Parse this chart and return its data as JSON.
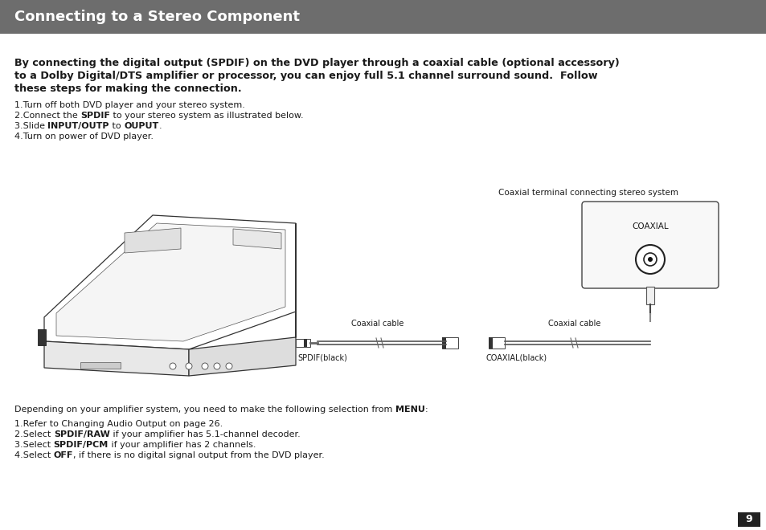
{
  "title": "Connecting to a Stereo Component",
  "title_bg": "#6d6d6d",
  "title_color": "#ffffff",
  "title_fontsize": 13,
  "page_bg": "#ffffff",
  "page_num": "9",
  "intro_line1": "By connecting the digital output (SPDIF) on the DVD player through a coaxial cable (optional accessory)",
  "intro_line2": "to a Dolby Digital/DTS amplifier or processor, you can enjoy full 5.1 channel surround sound.  Follow",
  "intro_line3": "these steps for making the connection.",
  "step1": "1.Turn off both DVD player and your stereo system.",
  "step2_pre": "2.Connect the ",
  "step2_bold": "SPDIF",
  "step2_post": " to your stereo system as illustrated below.",
  "step3_pre": "3.Slide ",
  "step3_bold1": "INPUT/OUTP",
  "step3_mid": " to ",
  "step3_bold2": "OUPUT",
  "step3_post": ".",
  "step4": "4.Turn on power of DVD player.",
  "coaxial_terminal_label": "Coaxial terminal connecting stereo system",
  "coaxial_panel_label": "COAXIAL",
  "coaxial_cable_label": "Coaxial cable",
  "spdif_label": "SPDIF(black)",
  "coaxial_black_label": "COAXIAL(black)",
  "menu_pre": "Depending on your amplifier system, you need to make the following selection from ",
  "menu_bold": "MENU",
  "menu_post": ":",
  "bstep1": "1.Refer to Changing Audio Output on page 26.",
  "bstep2_pre": "2.Select ",
  "bstep2_bold": "SPDIF/RAW",
  "bstep2_post": " if your amplifier has 5.1-channel decoder.",
  "bstep3_pre": "3.Select ",
  "bstep3_bold": "SPDIF/PCM",
  "bstep3_post": " if your amplifier has 2 channels.",
  "bstep4_pre": "4.Select ",
  "bstep4_bold": "OFF",
  "bstep4_post": ", if there is no digital signal output from the DVD player.",
  "text_color": "#1a1a1a",
  "text_fs": 8.2,
  "bold_fs": 9.2,
  "body_fs": 8.0
}
